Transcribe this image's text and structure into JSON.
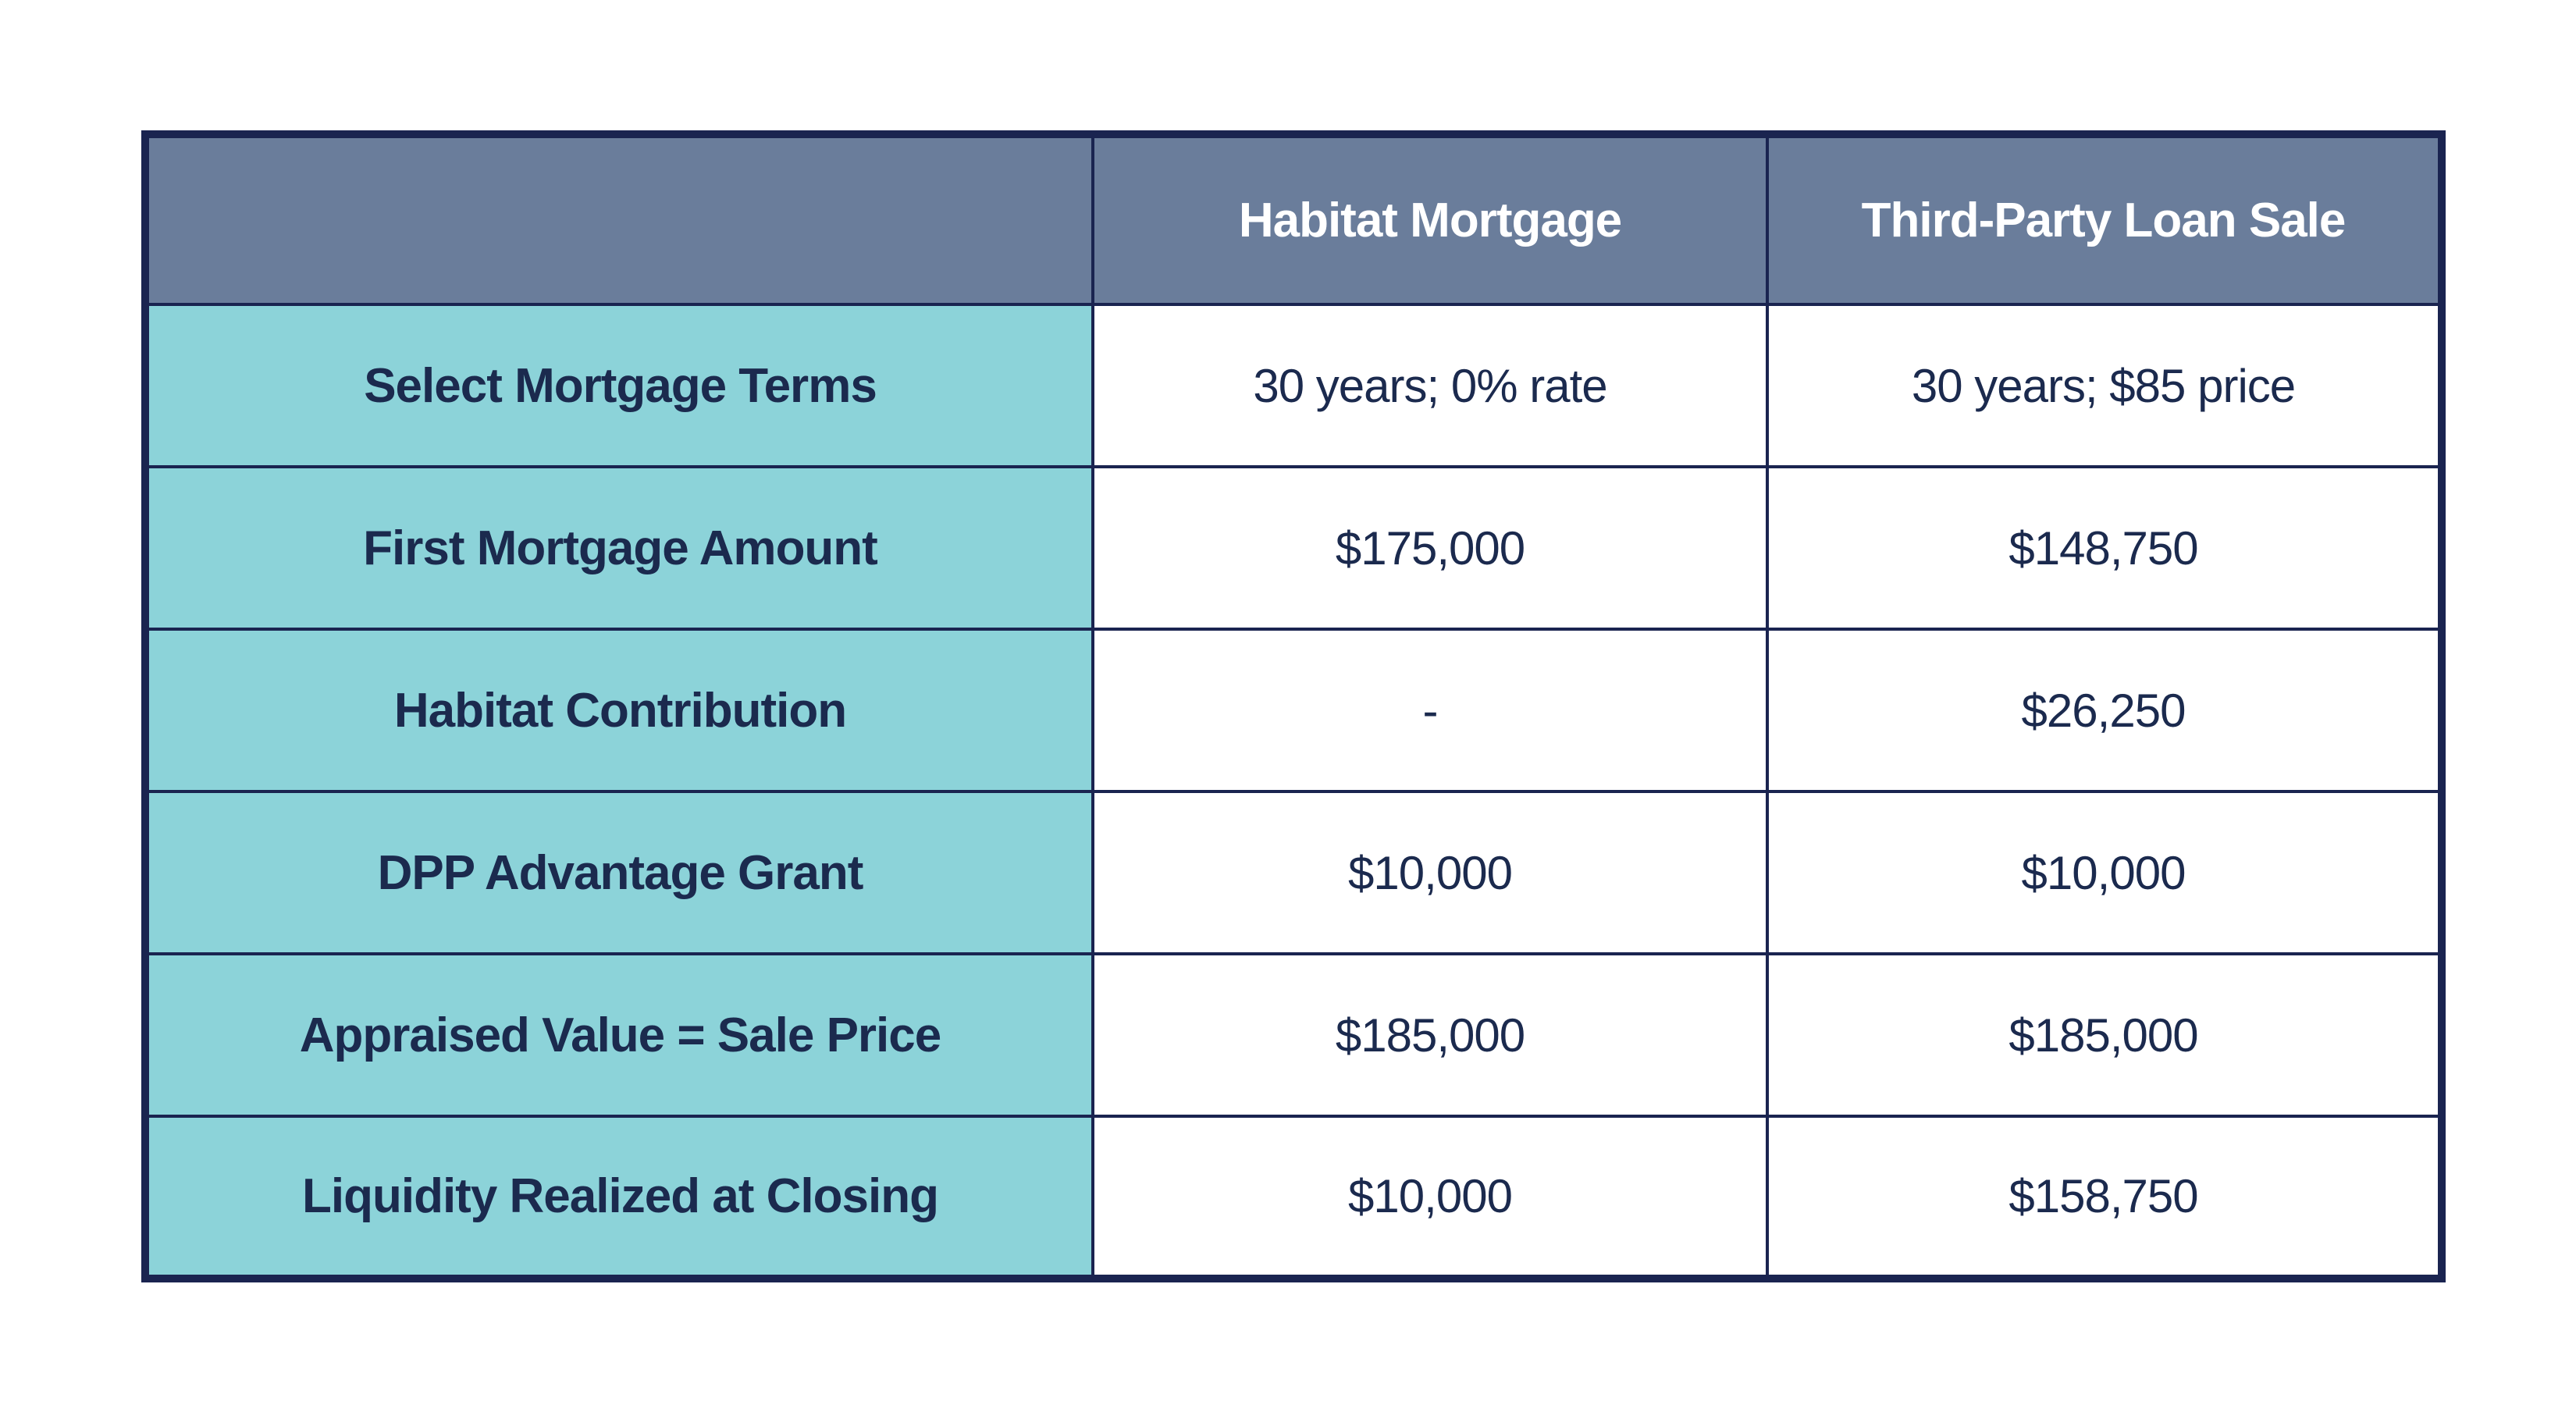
{
  "page": {
    "background": "#FFFFFF"
  },
  "table": {
    "header": {
      "col0": "",
      "col1": "Habitat Mortgage",
      "col2": "Third-Party Loan Sale"
    },
    "rows": [
      {
        "label": "Select Mortgage Terms",
        "values": [
          "30 years; 0% rate",
          "30 years; $85 price"
        ]
      },
      {
        "label": "First Mortgage Amount",
        "values": [
          "$175,000",
          "$148,750"
        ]
      },
      {
        "label": "Habitat Contribution",
        "values": [
          "-",
          "$26,250"
        ]
      },
      {
        "label": "DPP Advantage Grant",
        "values": [
          "$10,000",
          "$10,000"
        ]
      },
      {
        "label": "Appraised Value = Sale Price",
        "values": [
          "$185,000",
          "$185,000"
        ]
      },
      {
        "label": "Liquidity Realized at Closing",
        "values": [
          "$10,000",
          "$158,750"
        ]
      }
    ],
    "colors": {
      "header_bg": "#6A7D9B",
      "header_text": "#FFFFFF",
      "label_bg": "#8CD3D9",
      "cell_bg": "#FFFFFF",
      "text": "#1B2A4E",
      "border": "#1A2450"
    }
  },
  "chart_data": {
    "type": "table",
    "columns": [
      "",
      "Habitat Mortgage",
      "Third-Party Loan Sale"
    ],
    "rows": [
      [
        "Select Mortgage Terms",
        "30 years; 0% rate",
        "30 years; $85 price"
      ],
      [
        "First Mortgage Amount",
        "$175,000",
        "$148,750"
      ],
      [
        "Habitat Contribution",
        "-",
        "$26,250"
      ],
      [
        "DPP Advantage Grant",
        "$10,000",
        "$10,000"
      ],
      [
        "Appraised Value = Sale Price",
        "$185,000",
        "$185,000"
      ],
      [
        "Liquidity Realized at Closing",
        "$10,000",
        "$158,750"
      ]
    ]
  }
}
